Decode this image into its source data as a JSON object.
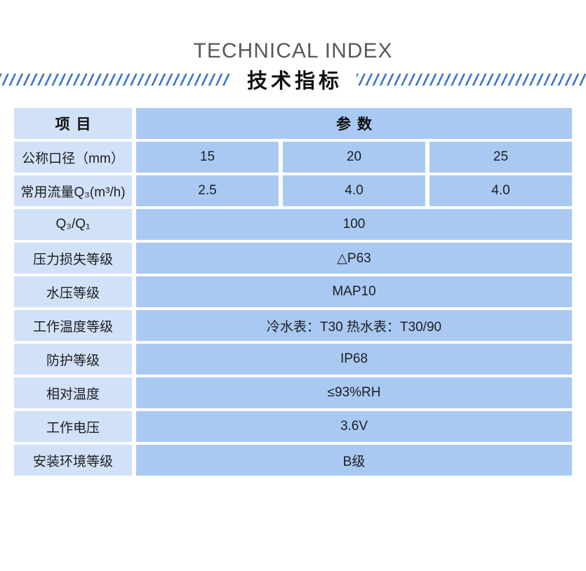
{
  "header": {
    "title_en": "TECHNICAL INDEX",
    "title_zh": "技术指标"
  },
  "table": {
    "col_header_item": "项目",
    "col_header_param": "参数",
    "rows": [
      {
        "label": "公称口径（mm）",
        "values": [
          "15",
          "20",
          "25"
        ]
      },
      {
        "label": "常用流量Q₃(m³/h)",
        "values": [
          "2.5",
          "4.0",
          "4.0"
        ]
      },
      {
        "label": "Q₃/Q₁",
        "value": "100"
      },
      {
        "label": "压力损失等级",
        "value": "△P63"
      },
      {
        "label": "水压等级",
        "value": "MAP10"
      },
      {
        "label": "工作温度等级",
        "value": "冷水表：T30 热水表：T30/90"
      },
      {
        "label": "防护等级",
        "value": "IP68"
      },
      {
        "label": "相对温度",
        "value": "≤93%RH"
      },
      {
        "label": "工作电压",
        "value": "3.6V"
      },
      {
        "label": "安装环境等级",
        "value": "B级"
      }
    ]
  },
  "colors": {
    "cell_light": "#d1e1f8",
    "cell_medium": "#a9c9f3",
    "stripe_blue": "#3a77c8",
    "title_gray": "#57585b",
    "text_dark": "#1e1e1e"
  }
}
